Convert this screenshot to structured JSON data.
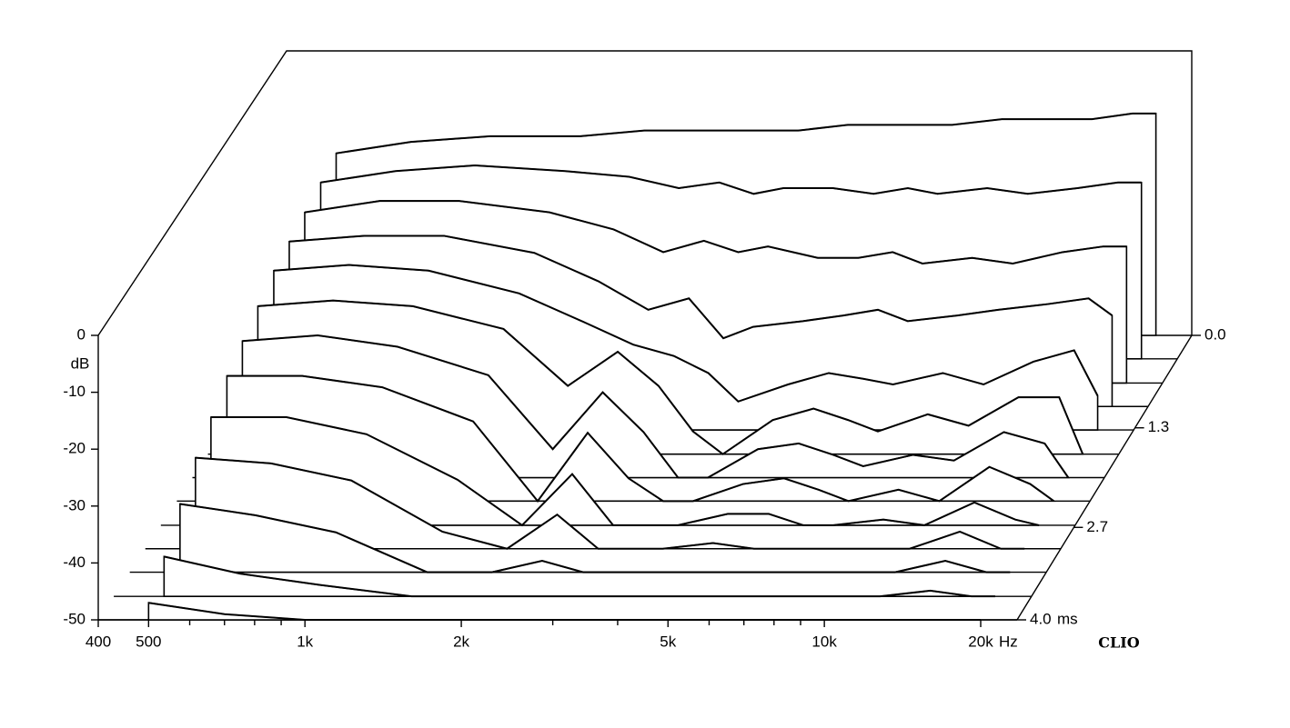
{
  "chart_data": {
    "type": "waterfall",
    "y_label": "dB",
    "x_unit": "Hz",
    "z_unit": "ms",
    "brand": "CLIO",
    "xlim": [
      400,
      23500
    ],
    "ylim": [
      -50,
      0
    ],
    "zlim": [
      0,
      4
    ],
    "xscale": "log",
    "xticks": [
      400,
      500,
      {
        "value": 1000,
        "label": "1k"
      },
      {
        "value": 2000,
        "label": "2k"
      },
      {
        "value": 5000,
        "label": "5k"
      },
      {
        "value": 10000,
        "label": "10k"
      },
      {
        "value": 20000,
        "label": "20k"
      }
    ],
    "xminor_ticks": [
      600,
      700,
      800,
      900,
      3000,
      4000,
      6000,
      7000,
      8000,
      9000
    ],
    "yticks": [
      0,
      -10,
      -20,
      -30,
      -40,
      -50
    ],
    "zticks": [
      {
        "value": 0,
        "label": "0.0"
      },
      1.3,
      2.7,
      {
        "value": 4,
        "label": "4.0"
      }
    ],
    "color": "#000000",
    "x": [
      500,
      700,
      1000,
      1500,
      2000,
      2500,
      3000,
      3500,
      4000,
      5000,
      6000,
      7000,
      8000,
      10000,
      12000,
      15000,
      18000,
      20000
    ],
    "series": [
      {
        "time": 0,
        "values": [
          -18,
          -16,
          -15,
          -15,
          -14,
          -14,
          -14,
          -14,
          -14,
          -13,
          -13,
          -13,
          -13,
          -12,
          -12,
          -12,
          -11,
          -11
        ]
      },
      {
        "time": 0.33,
        "values": [
          -19,
          -17,
          -16,
          -17,
          -18,
          -20,
          -19,
          -21,
          -20,
          -20,
          -21,
          -20,
          -21,
          -20,
          -21,
          -20,
          -19,
          -19
        ]
      },
      {
        "time": 0.67,
        "values": [
          -20,
          -18,
          -18,
          -20,
          -23,
          -27,
          -25,
          -27,
          -26,
          -28,
          -28,
          -27,
          -29,
          -28,
          -29,
          -27,
          -26,
          -26
        ]
      },
      {
        "time": 1.0,
        "values": [
          -21,
          -20,
          -20,
          -23,
          -28,
          -33,
          -31,
          -38,
          -36,
          -35,
          -34,
          -33,
          -35,
          -34,
          -33,
          -32,
          -31,
          -34
        ]
      },
      {
        "time": 1.33,
        "values": [
          -22,
          -21,
          -22,
          -26,
          -31,
          -35,
          -37,
          -40,
          -45,
          -42,
          -40,
          -41,
          -42,
          -40,
          -42,
          -38,
          -36,
          -44
        ]
      },
      {
        "time": 1.67,
        "values": [
          -24,
          -23,
          -24,
          -28,
          -38,
          -32,
          -38,
          -46,
          -50,
          -44,
          -42,
          -44,
          -46,
          -43,
          -45,
          -40,
          -40,
          -50
        ]
      },
      {
        "time": 2.0,
        "values": [
          -26,
          -25,
          -27,
          -32,
          -45,
          -35,
          -42,
          -50,
          -50,
          -45,
          -44,
          -46,
          -48,
          -46,
          -47,
          -42,
          -44,
          -50
        ]
      },
      {
        "time": 2.33,
        "values": [
          -28,
          -28,
          -30,
          -36,
          -50,
          -38,
          -46,
          -50,
          -50,
          -47,
          -46,
          -48,
          -50,
          -48,
          -50,
          -44,
          -47,
          -50
        ]
      },
      {
        "time": 2.67,
        "values": [
          -31,
          -31,
          -34,
          -42,
          -50,
          -41,
          -50,
          -50,
          -50,
          -48,
          -48,
          -50,
          -50,
          -49,
          -50,
          -46,
          -49,
          -50
        ]
      },
      {
        "time": 3.0,
        "values": [
          -34,
          -35,
          -38,
          -47,
          -50,
          -44,
          -50,
          -50,
          -50,
          -49,
          -50,
          -50,
          -50,
          -50,
          -50,
          -47,
          -50,
          -50
        ]
      },
      {
        "time": 3.33,
        "values": [
          -38,
          -40,
          -43,
          -50,
          -50,
          -48,
          -50,
          -50,
          -50,
          -50,
          -50,
          -50,
          -50,
          -50,
          -50,
          -48,
          -50,
          -50
        ]
      },
      {
        "time": 3.67,
        "values": [
          -43,
          -46,
          -48,
          -50,
          -50,
          -50,
          -50,
          -50,
          -50,
          -50,
          -50,
          -50,
          -50,
          -50,
          -50,
          -49,
          -50,
          -50
        ]
      },
      {
        "time": 4.0,
        "values": [
          -47,
          -49,
          -50,
          -50,
          -50,
          -50,
          -50,
          -50,
          -50,
          -50,
          -50,
          -50,
          -50,
          -50,
          -50,
          -50,
          -50,
          -50
        ]
      }
    ]
  }
}
